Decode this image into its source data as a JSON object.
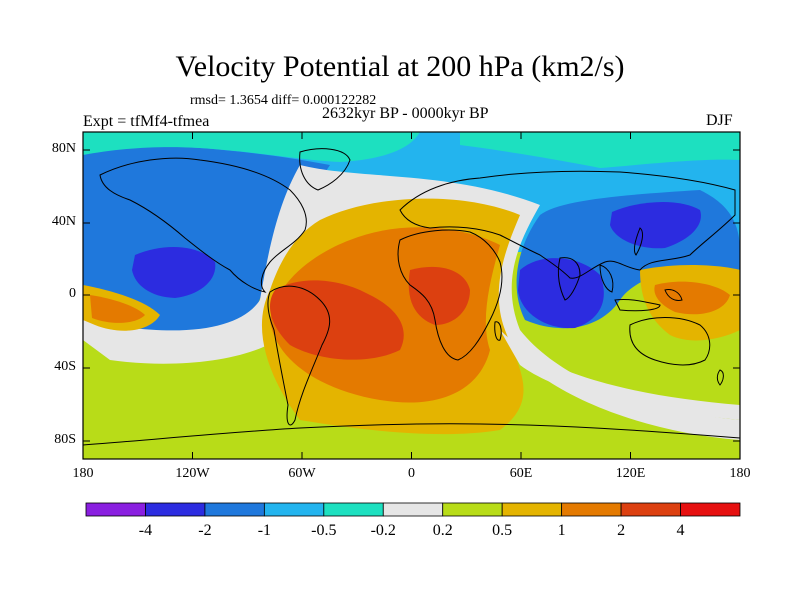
{
  "title": "Velocity Potential at 200 hPa (km2/s)",
  "stats": "rmsd= 1.3654 diff= 0.000122282",
  "experiment": "Expt = tfMf4-tfmea",
  "period": "2632kyr BP - 0000kyr BP",
  "season": "DJF",
  "y_axis_labels": [
    "80N",
    "40N",
    "0",
    "40S",
    "80S"
  ],
  "x_axis_labels": [
    "180",
    "120W",
    "60W",
    "0",
    "60E",
    "120E",
    "180"
  ],
  "colorbar": {
    "labels": [
      "-4",
      "-2",
      "-1",
      "-0.5",
      "-0.2",
      "0.2",
      "0.5",
      "1",
      "2",
      "4"
    ],
    "colors": [
      "#8a1fe0",
      "#2c2ce0",
      "#1f78dc",
      "#23b4ee",
      "#1de0c0",
      "#e6e6e6",
      "#b8dc18",
      "#e4b400",
      "#e47a00",
      "#dc4010",
      "#e61010"
    ]
  },
  "map": {
    "projection": "cylindrical-equidistant",
    "lon_range": [
      -180,
      180
    ],
    "lat_range": [
      -90,
      90
    ]
  }
}
